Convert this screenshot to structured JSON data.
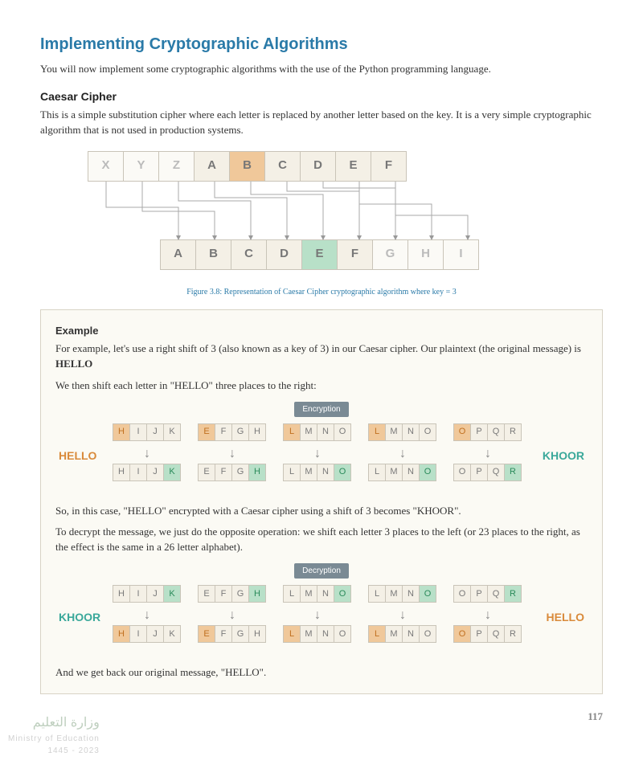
{
  "heading": "Implementing Cryptographic Algorithms",
  "intro": "You will now implement some cryptographic algorithms with the use of the Python programming language.",
  "sub": "Caesar Cipher",
  "sub_body": "This is a simple substitution cipher where each letter is replaced by another letter based on the key. It is a very simple cryptographic algorithm that is not used in production systems.",
  "top_row": [
    "X",
    "Y",
    "Z",
    "A",
    "B",
    "C",
    "D",
    "E",
    "F"
  ],
  "bot_row": [
    "A",
    "B",
    "C",
    "D",
    "E",
    "F",
    "G",
    "H",
    "I"
  ],
  "caption": "Figure 3.8: Representation of Caesar Cipher cryptographic algorithm where key = 3",
  "example": {
    "head": "Example",
    "p1a": "For example, let's use a right shift of 3 (also known as a key of 3) in our Caesar cipher. Our plaintext (the original message) is ",
    "p1b": "HELLO",
    "p2": "We then shift each letter in \"HELLO\" three places to the right:",
    "enc_label": "Encryption",
    "dec_label": "Decryption",
    "p3": "So, in this case, \"HELLO\" encrypted with a Caesar cipher using a shift of 3 becomes \"KHOOR\".",
    "p4": "To decrypt the message, we just do the opposite operation: we shift each letter 3 places to the left (or 23 places to the right, as the effect is the same in a 26 letter alphabet).",
    "p5": "And we get back our original message, \"HELLO\".",
    "plain_word": "HELLO",
    "cipher_word": "KHOOR",
    "enc_groups": [
      {
        "top": [
          "H",
          "I",
          "J",
          "K"
        ],
        "bot": [
          "H",
          "I",
          "J",
          "K"
        ],
        "t_hl": 0,
        "b_hl": 3
      },
      {
        "top": [
          "E",
          "F",
          "G",
          "H"
        ],
        "bot": [
          "E",
          "F",
          "G",
          "H"
        ],
        "t_hl": 0,
        "b_hl": 3
      },
      {
        "top": [
          "L",
          "M",
          "N",
          "O"
        ],
        "bot": [
          "L",
          "M",
          "N",
          "O"
        ],
        "t_hl": 0,
        "b_hl": 3
      },
      {
        "top": [
          "L",
          "M",
          "N",
          "O"
        ],
        "bot": [
          "L",
          "M",
          "N",
          "O"
        ],
        "t_hl": 0,
        "b_hl": 3
      },
      {
        "top": [
          "O",
          "P",
          "Q",
          "R"
        ],
        "bot": [
          "O",
          "P",
          "Q",
          "R"
        ],
        "t_hl": 0,
        "b_hl": 3
      }
    ],
    "dec_groups": [
      {
        "top": [
          "H",
          "I",
          "J",
          "K"
        ],
        "bot": [
          "H",
          "I",
          "J",
          "K"
        ],
        "t_hl": 3,
        "b_hl": 0
      },
      {
        "top": [
          "E",
          "F",
          "G",
          "H"
        ],
        "bot": [
          "E",
          "F",
          "G",
          "H"
        ],
        "t_hl": 3,
        "b_hl": 0
      },
      {
        "top": [
          "L",
          "M",
          "N",
          "O"
        ],
        "bot": [
          "L",
          "M",
          "N",
          "O"
        ],
        "t_hl": 3,
        "b_hl": 0
      },
      {
        "top": [
          "L",
          "M",
          "N",
          "O"
        ],
        "bot": [
          "L",
          "M",
          "N",
          "O"
        ],
        "t_hl": 3,
        "b_hl": 0
      },
      {
        "top": [
          "O",
          "P",
          "Q",
          "R"
        ],
        "bot": [
          "O",
          "P",
          "Q",
          "R"
        ],
        "t_hl": 3,
        "b_hl": 0
      }
    ]
  },
  "watermark": {
    "main": "وزارة التعليم",
    "sub1": "Ministry of Education",
    "sub2": "2023 - 1445"
  },
  "page_number": "117"
}
